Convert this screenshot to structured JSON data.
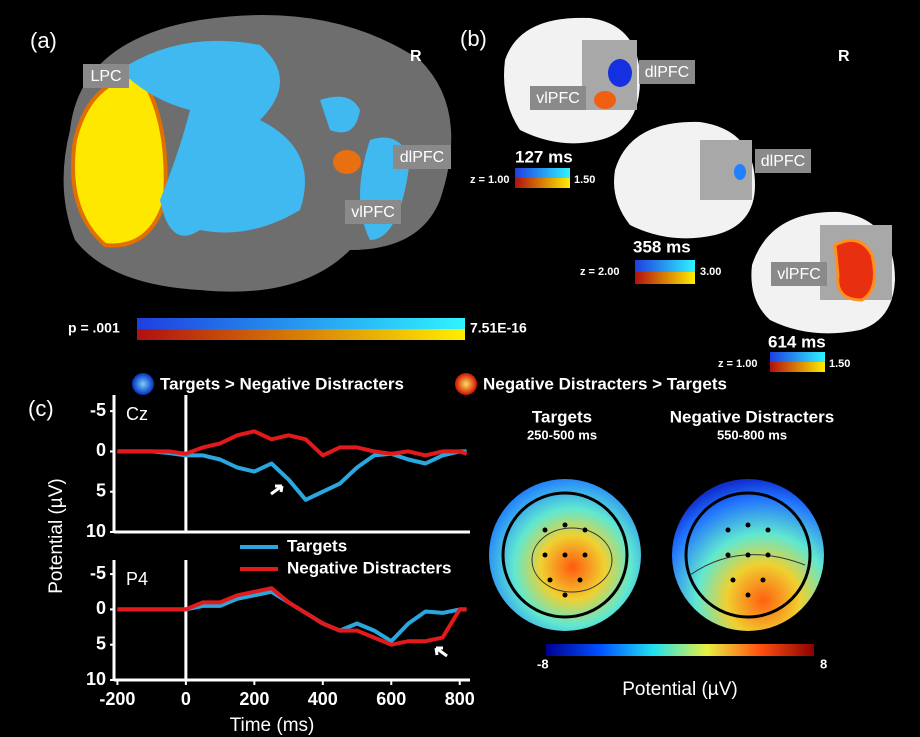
{
  "panel_a": {
    "label": "(a)",
    "side": "R",
    "regions": [
      "LPC",
      "dlPFC",
      "vlPFC"
    ],
    "colorbar": {
      "min_label": "p = .001",
      "max_label": "7.51E-16"
    }
  },
  "panel_b": {
    "label": "(b)",
    "side": "R",
    "maps": [
      {
        "regions": [
          "dlPFC",
          "vlPFC"
        ],
        "time": "127 ms",
        "z_min": "z = 1.00",
        "z_max": "1.50"
      },
      {
        "regions": [
          "dlPFC"
        ],
        "time": "358 ms",
        "z_min": "z = 2.00",
        "z_max": "3.00"
      },
      {
        "regions": [
          "vlPFC"
        ],
        "time": "614 ms",
        "z_min": "z = 1.00",
        "z_max": "1.50"
      }
    ]
  },
  "legend": [
    "Targets > Negative Distracters",
    "Negative Distracters > Targets"
  ],
  "panel_c": {
    "label": "(c)",
    "y_label": "Potential (µV)",
    "x_label": "Time (ms)"
  },
  "chart_data": [
    {
      "type": "line",
      "title": "Cz",
      "x": [
        -200,
        -150,
        -100,
        -50,
        0,
        50,
        100,
        150,
        200,
        250,
        300,
        350,
        400,
        450,
        500,
        550,
        600,
        650,
        700,
        750,
        800,
        820
      ],
      "series": [
        {
          "color": "#29a8e0",
          "values": [
            0,
            0,
            0,
            0.2,
            0.5,
            0.5,
            1,
            2,
            2.5,
            1.5,
            3.5,
            6,
            5,
            4,
            2,
            0.5,
            0.3,
            1,
            1.5,
            0.5,
            0,
            0
          ]
        },
        {
          "color": "#e31a1c",
          "values": [
            0,
            0,
            0,
            0,
            0.3,
            -0.5,
            -1,
            -2,
            -2.5,
            -1.5,
            -2,
            -1.5,
            0.5,
            -0.5,
            -0.5,
            0,
            0.3,
            0,
            0.5,
            0,
            0,
            0.3
          ]
        }
      ],
      "xlim": [
        -210,
        830
      ],
      "ylim": [
        -7,
        10
      ],
      "y_inverted": true,
      "yticks": [
        -5,
        0,
        5,
        10
      ]
    },
    {
      "type": "line",
      "title": "P4",
      "x": [
        -200,
        -150,
        -100,
        -50,
        0,
        50,
        100,
        150,
        200,
        250,
        300,
        350,
        400,
        450,
        500,
        550,
        600,
        650,
        700,
        750,
        800,
        820
      ],
      "series": [
        {
          "name": "Targets",
          "color": "#29a8e0",
          "values": [
            0,
            0,
            0,
            0,
            0,
            -0.5,
            -0.5,
            -1.5,
            -2,
            -2.5,
            -1,
            0.5,
            2,
            3,
            2,
            3,
            4.5,
            2,
            0.3,
            0.5,
            0,
            0
          ]
        },
        {
          "name": "Negative Distracters",
          "color": "#e31a1c",
          "values": [
            0,
            0,
            0,
            0,
            0,
            -1,
            -1,
            -2,
            -2.5,
            -3,
            -1,
            0.5,
            2,
            3,
            3,
            4,
            5,
            4.5,
            4.5,
            4,
            0,
            0
          ]
        }
      ],
      "xlim": [
        -210,
        830
      ],
      "ylim": [
        -7,
        10
      ],
      "y_inverted": true,
      "yticks": [
        -5,
        0,
        5,
        10
      ],
      "xticks": [
        -200,
        0,
        200,
        400,
        600,
        800
      ]
    }
  ],
  "topomaps": {
    "maps": [
      {
        "title": "Targets",
        "window": "250-500 ms"
      },
      {
        "title": "Negative Distracters",
        "window": "550-800 ms"
      }
    ],
    "colorbar": {
      "min": -8,
      "max": 8,
      "label": "Potential (µV)"
    }
  }
}
